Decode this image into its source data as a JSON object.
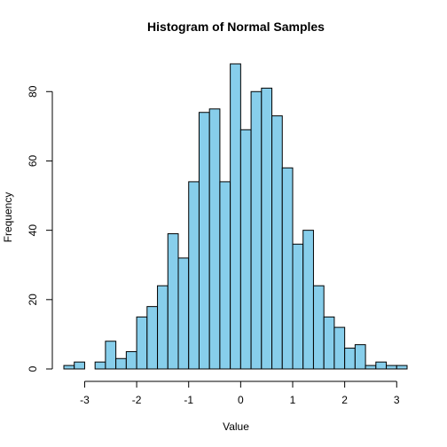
{
  "chart_data": {
    "type": "bar",
    "title": "Histogram of Normal Samples",
    "xlabel": "Value",
    "ylabel": "Frequency",
    "bar_color": "#87CEEB",
    "bin_width": 0.2,
    "bin_starts": [
      -3.4,
      -3.2,
      -3.0,
      -2.8,
      -2.6,
      -2.4,
      -2.2,
      -2.0,
      -1.8,
      -1.6,
      -1.4,
      -1.2,
      -1.0,
      -0.8,
      -0.6,
      -0.4,
      -0.2,
      0.0,
      0.2,
      0.4,
      0.6,
      0.8,
      1.0,
      1.2,
      1.4,
      1.6,
      1.8,
      2.0,
      2.2,
      2.4,
      2.6,
      2.8,
      3.0
    ],
    "values": [
      1,
      2,
      0,
      2,
      8,
      3,
      5,
      15,
      18,
      24,
      39,
      32,
      54,
      74,
      75,
      54,
      88,
      69,
      80,
      81,
      73,
      58,
      36,
      40,
      24,
      15,
      12,
      6,
      7,
      1,
      2,
      1,
      1
    ],
    "x_ticks": [
      -3,
      -2,
      -1,
      0,
      1,
      2,
      3
    ],
    "x_tick_labels": [
      "-3",
      "-2",
      "-1",
      "0",
      "1",
      "2",
      "3"
    ],
    "y_ticks": [
      0,
      20,
      40,
      60,
      80
    ],
    "y_tick_labels": [
      "0",
      "20",
      "40",
      "60",
      "80"
    ],
    "xlim": [
      -3.4,
      3.2
    ],
    "ylim": [
      0,
      88
    ],
    "grid": false,
    "legend": "none"
  }
}
